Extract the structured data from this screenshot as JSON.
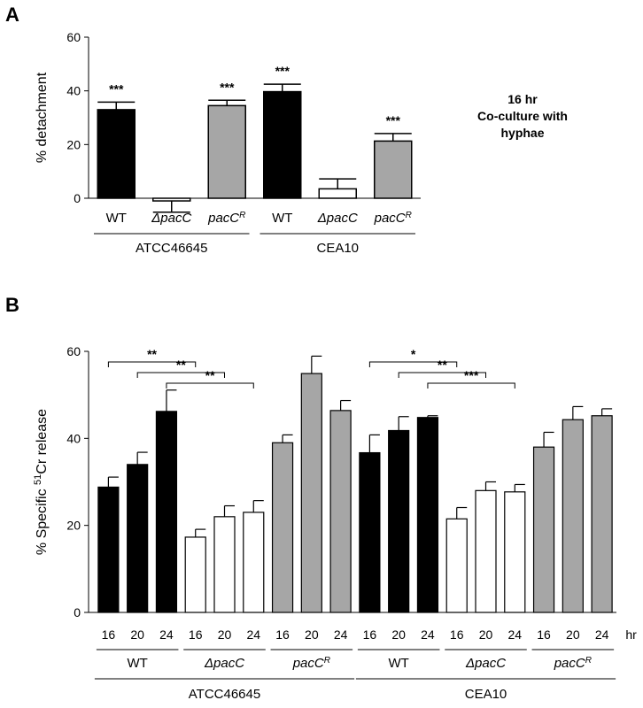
{
  "colors": {
    "wt": "#000000",
    "dpacc": "#ffffff",
    "pacr": "#a6a6a6",
    "stroke": "#000000"
  },
  "chart_data": [
    {
      "panel": "A",
      "type": "bar",
      "ylabel": "% detachment",
      "ylim": [
        0,
        60
      ],
      "yticks": [
        0,
        20,
        40,
        60
      ],
      "annotation": [
        "16 hr",
        "Co-culture with",
        "hyphae"
      ],
      "bars": [
        {
          "cat": "WT",
          "cat_sup": "",
          "strain": "ATCC46645",
          "value": 33,
          "err": 2.8,
          "star": "***",
          "kind": "wt"
        },
        {
          "cat": "ΔpacC",
          "cat_sup": "",
          "strain": "ATCC46645",
          "value": -1,
          "err": 4.2,
          "star": "",
          "kind": "dpacc"
        },
        {
          "cat": "pacC",
          "cat_sup": "R",
          "strain": "ATCC46645",
          "value": 34.5,
          "err": 2,
          "star": "***",
          "kind": "pacr"
        },
        {
          "cat": "WT",
          "cat_sup": "",
          "strain": "CEA10",
          "value": 39.7,
          "err": 2.8,
          "star": "***",
          "kind": "wt"
        },
        {
          "cat": "ΔpacC",
          "cat_sup": "",
          "strain": "CEA10",
          "value": 3.5,
          "err": 3.7,
          "star": "",
          "kind": "dpacc"
        },
        {
          "cat": "pacC",
          "cat_sup": "R",
          "strain": "CEA10",
          "value": 21.3,
          "err": 2.8,
          "star": "***",
          "kind": "pacr"
        }
      ],
      "strains": [
        {
          "name": "ATCC46645"
        },
        {
          "name": "CEA10"
        }
      ]
    },
    {
      "panel": "B",
      "type": "bar",
      "ylabel_prefix": "% Specific ",
      "ylabel_sup": "51",
      "ylabel_suffix": "Cr release",
      "ylim": [
        0,
        60
      ],
      "yticks": [
        0,
        20,
        40,
        60
      ],
      "x_unit": "hr",
      "bars": [
        {
          "hr": "16",
          "group": "WT",
          "strain": "ATCC46645",
          "value": 28.8,
          "err": 2.3,
          "kind": "wt"
        },
        {
          "hr": "20",
          "group": "WT",
          "strain": "ATCC46645",
          "value": 34,
          "err": 2.8,
          "kind": "wt"
        },
        {
          "hr": "24",
          "group": "WT",
          "strain": "ATCC46645",
          "value": 46.2,
          "err": 4.9,
          "kind": "wt"
        },
        {
          "hr": "16",
          "group": "ΔpacC",
          "strain": "ATCC46645",
          "value": 17.3,
          "err": 1.8,
          "kind": "dpacc"
        },
        {
          "hr": "20",
          "group": "ΔpacC",
          "strain": "ATCC46645",
          "value": 22,
          "err": 2.5,
          "kind": "dpacc"
        },
        {
          "hr": "24",
          "group": "ΔpacC",
          "strain": "ATCC46645",
          "value": 23,
          "err": 2.7,
          "kind": "dpacc"
        },
        {
          "hr": "16",
          "group": "pacC^R",
          "strain": "ATCC46645",
          "value": 39,
          "err": 1.8,
          "kind": "pacr"
        },
        {
          "hr": "20",
          "group": "pacC^R",
          "strain": "ATCC46645",
          "value": 54.9,
          "err": 4,
          "kind": "pacr"
        },
        {
          "hr": "24",
          "group": "pacC^R",
          "strain": "ATCC46645",
          "value": 46.4,
          "err": 2.3,
          "kind": "pacr"
        },
        {
          "hr": "16",
          "group": "WT",
          "strain": "CEA10",
          "value": 36.7,
          "err": 4.1,
          "kind": "wt"
        },
        {
          "hr": "20",
          "group": "WT",
          "strain": "CEA10",
          "value": 41.8,
          "err": 3.2,
          "kind": "wt"
        },
        {
          "hr": "24",
          "group": "WT",
          "strain": "CEA10",
          "value": 44.8,
          "err": 0.4,
          "kind": "wt"
        },
        {
          "hr": "16",
          "group": "ΔpacC",
          "strain": "CEA10",
          "value": 21.5,
          "err": 2.6,
          "kind": "dpacc"
        },
        {
          "hr": "20",
          "group": "ΔpacC",
          "strain": "CEA10",
          "value": 28,
          "err": 2,
          "kind": "dpacc"
        },
        {
          "hr": "24",
          "group": "ΔpacC",
          "strain": "CEA10",
          "value": 27.7,
          "err": 1.7,
          "kind": "dpacc"
        },
        {
          "hr": "16",
          "group": "pacC^R",
          "strain": "CEA10",
          "value": 38,
          "err": 3.4,
          "kind": "pacr"
        },
        {
          "hr": "20",
          "group": "pacC^R",
          "strain": "CEA10",
          "value": 44.3,
          "err": 3,
          "kind": "pacr"
        },
        {
          "hr": "24",
          "group": "pacC^R",
          "strain": "CEA10",
          "value": 45.2,
          "err": 1.6,
          "kind": "pacr"
        }
      ],
      "groups": [
        {
          "name": "WT",
          "sup": "",
          "strain": "ATCC46645"
        },
        {
          "name": "ΔpacC",
          "sup": "",
          "strain": "ATCC46645"
        },
        {
          "name": "pacC",
          "sup": "R",
          "strain": "ATCC46645"
        },
        {
          "name": "WT",
          "sup": "",
          "strain": "CEA10"
        },
        {
          "name": "ΔpacC",
          "sup": "",
          "strain": "CEA10"
        },
        {
          "name": "pacC",
          "sup": "R",
          "strain": "CEA10"
        }
      ],
      "strains": [
        {
          "name": "ATCC46645"
        },
        {
          "name": "CEA10"
        }
      ],
      "significance": [
        {
          "from": 0,
          "to": 3,
          "label": "**",
          "y": 59.5
        },
        {
          "from": 1,
          "to": 4,
          "label": "**",
          "y": 58.5
        },
        {
          "from": 2,
          "to": 5,
          "label": "**",
          "y": 57.5
        },
        {
          "from": 9,
          "to": 12,
          "label": "*",
          "y": 59.5
        },
        {
          "from": 10,
          "to": 13,
          "label": "**",
          "y": 58.5
        },
        {
          "from": 11,
          "to": 14,
          "label": "***",
          "y": 57.5
        }
      ]
    }
  ]
}
